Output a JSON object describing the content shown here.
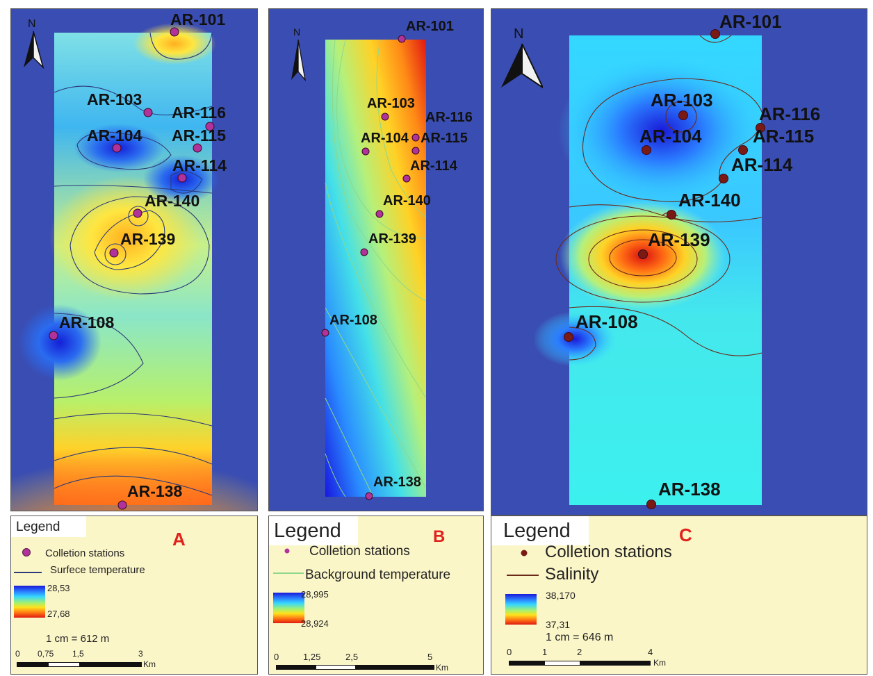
{
  "north_label": "N",
  "panels": [
    {
      "id": "A",
      "letter": "A",
      "legend_title": "Legend",
      "stations_label": "Colletion stations",
      "contour_label": "Surfece temperature",
      "ramp_high": "28,53",
      "ramp_low": "27,68",
      "scale_text": "1 cm = 612 m",
      "scale_ticks": [
        "0",
        "0,75",
        "1,5",
        "3"
      ],
      "scale_unit": "Km",
      "station_color": "#b0329a",
      "contour_color": "#2c3a7a",
      "stations": [
        "AR-101",
        "AR-103",
        "AR-116",
        "AR-104",
        "AR-115",
        "AR-114",
        "AR-140",
        "AR-139",
        "AR-108",
        "AR-138"
      ]
    },
    {
      "id": "B",
      "letter": "B",
      "legend_title": "Legend",
      "stations_label": "Colletion stations",
      "contour_label": "Background temperature",
      "ramp_high": "28,995",
      "ramp_low": "28,924",
      "scale_ticks": [
        "0",
        "1,25",
        "2,5",
        "5"
      ],
      "scale_unit": "Km",
      "station_color": "#b0329a",
      "contour_color": "#8fd88a",
      "stations": [
        "AR-101",
        "AR-103",
        "AR-116",
        "AR-104",
        "AR-115",
        "AR-114",
        "AR-140",
        "AR-139",
        "AR-108",
        "AR-138"
      ]
    },
    {
      "id": "C",
      "letter": "C",
      "legend_title": "Legend",
      "stations_label": "Colletion stations",
      "contour_label": "Salinity",
      "ramp_high": "38,170",
      "ramp_low": "37,31",
      "scale_text": "1 cm = 646 m",
      "scale_ticks": [
        "0",
        "1",
        "2",
        "4"
      ],
      "scale_unit": "Km",
      "station_color": "#7a1a14",
      "contour_color": "#6a2a1a",
      "stations": [
        "AR-101",
        "AR-103",
        "AR-116",
        "AR-104",
        "AR-115",
        "AR-114",
        "AR-140",
        "AR-139",
        "AR-108",
        "AR-138"
      ]
    }
  ]
}
